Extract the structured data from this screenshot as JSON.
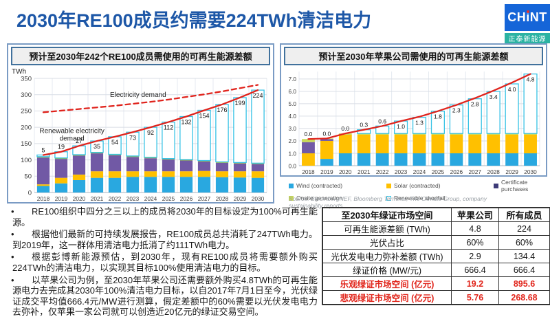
{
  "slide": {
    "title": "2030年RE100成员约需要224TWh清洁电力"
  },
  "logo": {
    "brand": "CHiNT",
    "tagline": "正泰新能源",
    "brand_color": "#1565d8",
    "tagline_color": "#2bb3a3"
  },
  "bullets": [
    "RE100组织中四分之三以上的成员将2030年的目标设定为100%可再生能源。",
    "根据他们最新的可持续发展报告，RE100成员总共消耗了247TWh电力。到2019年，这一群体用清洁电力抵消了约111TWh电力。",
    "根据彭博新能源预估，到2030年，现有RE100成员将需要额外购买224TWh的清洁电力，以实现其目标100%使用清洁电力的目标。",
    "以苹果公司为例，至2030年苹果公司还需要额外购买4.8TWh的可再生能源电力去完成其2030年100%清洁电力目标，以自2017年7月1日至今，光伏绿证成交平均值666.4元/MW进行测算，假定差额中的60%需要以光伏发电电力去弥补，仅苹果一家公司就可以创造近20亿元的绿证交易空间。"
  ],
  "table": {
    "headers": [
      "至2030年绿证市场空间",
      "苹果公司",
      "所有成员"
    ],
    "rows": [
      {
        "label": "可再生能源差额 (TWh)",
        "apple": "4.8",
        "all": "224",
        "highlight": false
      },
      {
        "label": "光伏占比",
        "apple": "60%",
        "all": "60%",
        "highlight": false
      },
      {
        "label": "光伏发电电力弥补差额 (TWh)",
        "apple": "2.9",
        "all": "134.4",
        "highlight": false
      },
      {
        "label": "绿证价格 (MW/元)",
        "apple": "666.4",
        "all": "666.4",
        "highlight": false
      },
      {
        "label": "乐观绿证市场空间 (亿元)",
        "apple": "19.2",
        "all": "895.6",
        "highlight": true
      },
      {
        "label": "悲观绿证市场空间 (亿元)",
        "apple": "5.76",
        "all": "268.68",
        "highlight": true
      }
    ]
  },
  "chart_data": [
    {
      "type": "bar",
      "title": "预计至2030年242个RE100成员需使用的可再生能源差额",
      "ylabel": "TWh",
      "ylim": [
        0,
        350
      ],
      "yticks": [
        0,
        50,
        100,
        150,
        200,
        250,
        300,
        350
      ],
      "ytick_labels": [
        "0",
        "50",
        "100",
        "150",
        "200",
        "250",
        "300",
        "350"
      ],
      "categories": [
        "2018",
        "2019",
        "2020",
        "2021",
        "2022",
        "2023",
        "2024",
        "2025",
        "2026",
        "2027",
        "2028",
        "2029",
        "2030"
      ],
      "series": [
        {
          "name": "Wind (contracted)",
          "color": "#29a8e0",
          "values": [
            20,
            28,
            38,
            45,
            45,
            48,
            48,
            48,
            48,
            48,
            47,
            46,
            45
          ]
        },
        {
          "name": "Solar (contracted)",
          "color": "#ffc000",
          "values": [
            5,
            17,
            17,
            20,
            20,
            17,
            17,
            17,
            17,
            18,
            18,
            19,
            20
          ]
        },
        {
          "name": "Certificate purchases",
          "color": "#7159a5",
          "values": [
            82,
            58,
            58,
            55,
            49,
            44,
            40,
            36,
            33,
            29,
            26,
            24,
            22
          ]
        },
        {
          "name": "Onsite generation",
          "color": "#8fbc4f",
          "values": [
            3,
            3,
            3,
            3,
            3,
            3,
            3,
            3,
            3,
            3,
            3,
            3,
            3
          ]
        },
        {
          "name": "Renewable shortfall",
          "color": "#ffffff",
          "stroke": "#36c2e5",
          "labeled": true,
          "values": [
            5,
            19,
            27,
            35,
            54,
            73,
            92,
            112,
            132,
            154,
            176,
            199,
            224
          ],
          "labels": [
            "5",
            "19",
            "27",
            "35",
            "54",
            "73",
            "92",
            "112",
            "132",
            "154",
            "176",
            "199",
            "224"
          ]
        }
      ],
      "lines": [
        {
          "name": "Renewable electricity demand",
          "style": "solid",
          "color": "#e0231c",
          "values": [
            115,
            125,
            143,
            158,
            171,
            185,
            200,
            216,
            233,
            252,
            270,
            291,
            314
          ]
        },
        {
          "name": "Electricity demand",
          "style": "dashed",
          "color": "#e0231c",
          "values": [
            246,
            251,
            256,
            261,
            266,
            272,
            278,
            285,
            293,
            301,
            310,
            320,
            330
          ]
        }
      ],
      "annotations": [
        {
          "text": "Electricity demand",
          "x": 5.3,
          "y": 293
        },
        {
          "text": "Renewable electricity\ndemand",
          "x": 1.6,
          "y": 182
        }
      ]
    },
    {
      "type": "bar",
      "title": "预计至2030年苹果公司需使用的可再生能源差额",
      "ylim": [
        0,
        7.6
      ],
      "yticks": [
        0,
        1,
        2,
        3,
        4,
        5,
        6,
        7
      ],
      "ytick_labels": [
        "0.0",
        "1.0",
        "2.0",
        "3.0",
        "4.0",
        "5.0",
        "6.0",
        "7.0"
      ],
      "categories": [
        "2018",
        "2019",
        "2020",
        "2021",
        "2022",
        "2023",
        "2024",
        "2025",
        "2026",
        "2027",
        "2028",
        "2029",
        "2030"
      ],
      "series": [
        {
          "name": "Wind (contracted)",
          "color": "#29a8e0",
          "values": [
            0,
            0.55,
            1.0,
            1.0,
            1.0,
            1.0,
            1.0,
            1.0,
            1.0,
            1.0,
            1.0,
            1.0,
            1.0
          ]
        },
        {
          "name": "Solar (contracted)",
          "color": "#ffc000",
          "values": [
            1.0,
            1.45,
            1.5,
            1.5,
            1.5,
            1.5,
            1.5,
            1.5,
            1.5,
            1.5,
            1.5,
            1.5,
            1.5
          ]
        },
        {
          "name": "Certificate purchases",
          "color": "#7159a5",
          "values": [
            0.9,
            0.15,
            0,
            0,
            0,
            0,
            0,
            0,
            0,
            0,
            0,
            0,
            0
          ]
        },
        {
          "name": "Onsite generation",
          "color": "#c8d957",
          "values": [
            0.25,
            0.05,
            0.1,
            0.1,
            0.1,
            0.1,
            0.1,
            0.1,
            0.1,
            0.1,
            0.1,
            0.1,
            0.1
          ]
        },
        {
          "name": "Renewable shortfall",
          "color": "#ffffff",
          "stroke": "#36c2e5",
          "labeled": true,
          "values": [
            0,
            0,
            0,
            0.3,
            0.6,
            1.0,
            1.3,
            1.8,
            2.3,
            2.8,
            3.4,
            4.0,
            4.8
          ],
          "labels": [
            "0.0",
            "0.0",
            "0.0",
            "0.3",
            "0.6",
            "1.0",
            "1.3",
            "1.8",
            "2.3",
            "2.8",
            "3.4",
            "4.0",
            "4.8"
          ]
        }
      ],
      "lines": [
        {
          "name": "Renewable electricity demand",
          "style": "solid",
          "color": "#e0231c",
          "values": [
            2.15,
            2.2,
            2.6,
            2.9,
            3.2,
            3.6,
            3.95,
            4.4,
            4.9,
            5.45,
            6.05,
            6.7,
            7.4
          ]
        }
      ],
      "legend": [
        {
          "label": "Wind (contracted)",
          "color": "#29a8e0"
        },
        {
          "label": "Solar (contracted)",
          "color": "#ffc000"
        },
        {
          "label": "Certificate purchases",
          "color": "#3d3b78"
        },
        {
          "label": "Onsite generation",
          "color": "#c8d957"
        },
        {
          "label": "Renewable shortfall",
          "color": "#ffffff",
          "stroke": "#36c2e5"
        }
      ],
      "source": "Source: BloombergNEF, Bloomberg Terminal, The Climate Group, company sustainability reports"
    }
  ]
}
